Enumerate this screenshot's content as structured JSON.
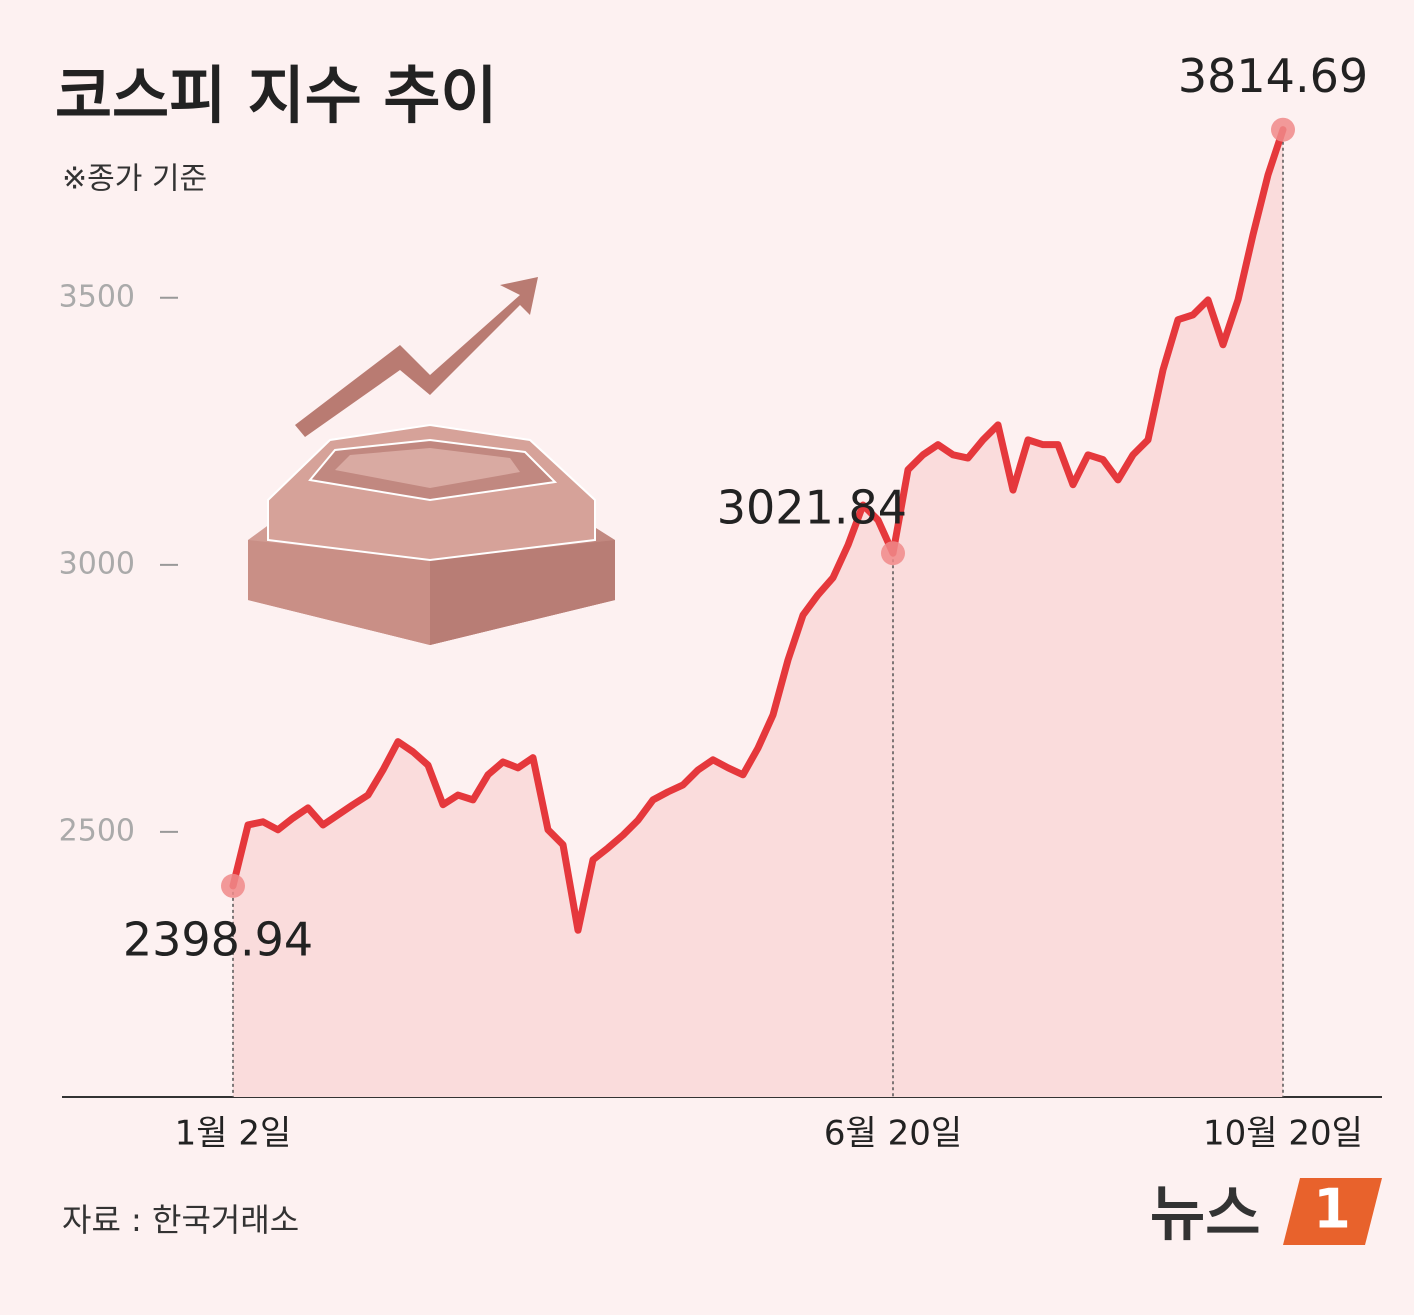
{
  "chart_data": {
    "type": "line",
    "title": "코스피 지수 추이",
    "subtitle": "※종가 기준",
    "source": "자료 : 한국거래소",
    "brand": {
      "text": "뉴스",
      "badge": "1"
    },
    "color": "#e5383c",
    "fill": "#fadcdc",
    "ylim": [
      2000,
      4050
    ],
    "yticks": [
      2500,
      3000,
      3500
    ],
    "categories": [
      "1월 2일",
      null,
      null,
      null,
      null,
      null,
      null,
      null,
      null,
      null,
      null,
      null,
      null,
      null,
      null,
      null,
      null,
      null,
      null,
      null,
      null,
      null,
      null,
      null,
      null,
      null,
      null,
      null,
      null,
      null,
      null,
      null,
      null,
      null,
      null,
      null,
      null,
      null,
      null,
      null,
      null,
      null,
      null,
      null,
      "6월 20일",
      null,
      null,
      null,
      null,
      null,
      null,
      null,
      null,
      null,
      null,
      null,
      null,
      null,
      null,
      null,
      null,
      null,
      null,
      null,
      null,
      null,
      null,
      null,
      null,
      null,
      "10월 20일"
    ],
    "values": [
      2398.94,
      2513,
      2519,
      2504,
      2526,
      2545,
      2513,
      2532,
      2551,
      2569,
      2616,
      2669,
      2650,
      2625,
      2551,
      2569,
      2560,
      2607,
      2631,
      2620,
      2639,
      2504,
      2476,
      2316,
      2448,
      2470,
      2494,
      2522,
      2560,
      2575,
      2588,
      2616,
      2635,
      2620,
      2607,
      2657,
      2719,
      2822,
      2906,
      2944,
      2976,
      3037,
      3112,
      3084,
      3021.84,
      3178,
      3206,
      3225,
      3206,
      3200,
      3234,
      3262,
      3140,
      3234,
      3225,
      3225,
      3150,
      3206,
      3197,
      3159,
      3206,
      3234,
      3365,
      3459,
      3468,
      3496,
      3412,
      3496,
      3618,
      3730,
      3814.69
    ],
    "value_labels": [
      "2398.94",
      null,
      null,
      null,
      null,
      null,
      null,
      null,
      null,
      null,
      null,
      null,
      null,
      null,
      null,
      null,
      null,
      null,
      null,
      null,
      null,
      null,
      null,
      null,
      null,
      null,
      null,
      null,
      null,
      null,
      null,
      null,
      null,
      null,
      null,
      null,
      null,
      null,
      null,
      null,
      null,
      null,
      null,
      null,
      "3021.84",
      null,
      null,
      null,
      null,
      null,
      null,
      null,
      null,
      null,
      null,
      null,
      null,
      null,
      null,
      null,
      null,
      null,
      null,
      null,
      null,
      null,
      null,
      null,
      null,
      null,
      "3814.69"
    ]
  }
}
